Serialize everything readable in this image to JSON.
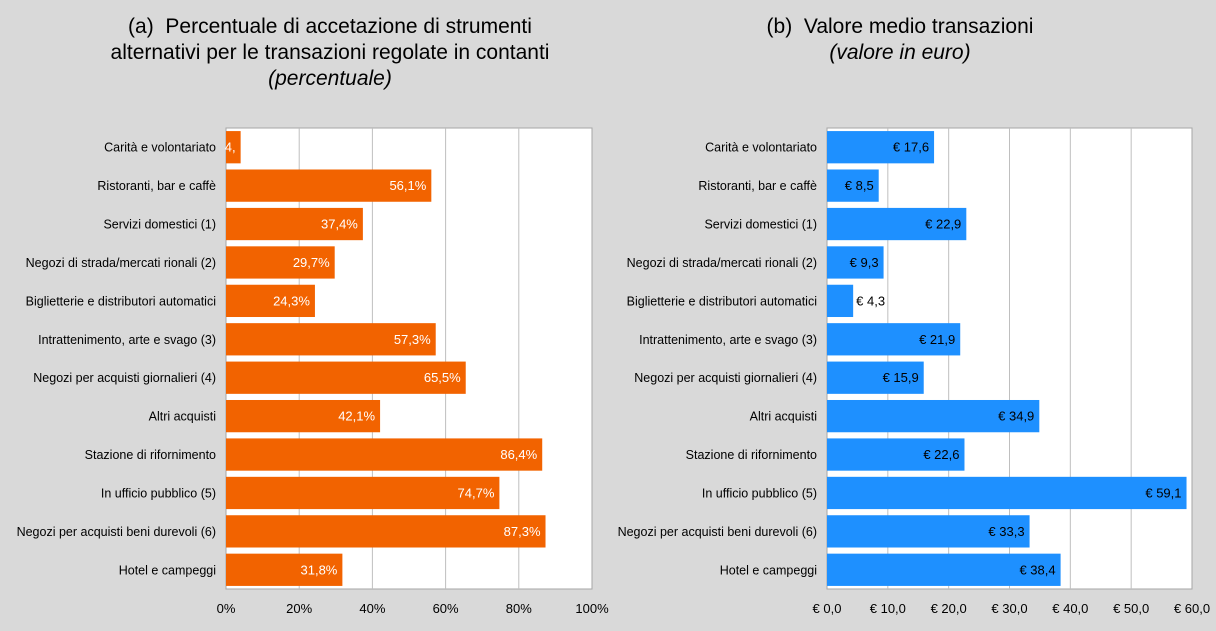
{
  "chart_data": [
    {
      "type": "bar",
      "orientation": "horizontal",
      "title_prefix": "(a)",
      "title_lines": [
        "Percentuale di accetazione di strumenti",
        "alternativi per le transazioni regolate in contanti"
      ],
      "subtitle": "(percentuale)",
      "categories": [
        "Carità e volontariato",
        "Ristoranti, bar e caffè",
        "Servizi domestici (1)",
        "Negozi di strada/mercati rionali (2)",
        "Biglietterie e distributori automatici",
        "Intrattenimento, arte e svago (3)",
        "Negozi per acquisti giornalieri (4)",
        "Altri acquisti",
        "Stazione di rifornimento",
        "In ufficio pubblico (5)",
        "Negozi per acquisti beni durevoli (6)",
        "Hotel e campeggi"
      ],
      "values": [
        4.0,
        56.1,
        37.4,
        29.7,
        24.3,
        57.3,
        65.5,
        42.1,
        86.4,
        74.7,
        87.3,
        31.8
      ],
      "value_labels": [
        "4,",
        "56,1%",
        "37,4%",
        "29,7%",
        "24,3%",
        "57,3%",
        "65,5%",
        "42,1%",
        "86,4%",
        "74,7%",
        "87,3%",
        "31,8%"
      ],
      "xlim": [
        0,
        100
      ],
      "xticks": [
        "0%",
        "20%",
        "40%",
        "60%",
        "80%",
        "100%"
      ],
      "color": "#f26300",
      "grid": true
    },
    {
      "type": "bar",
      "orientation": "horizontal",
      "title_prefix": "(b)",
      "title_lines": [
        "Valore medio transazioni"
      ],
      "subtitle": "(valore in euro)",
      "categories": [
        "Carità e volontariato",
        "Ristoranti, bar e caffè",
        "Servizi domestici (1)",
        "Negozi di strada/mercati rionali (2)",
        "Biglietterie e distributori automatici",
        "Intrattenimento, arte e svago (3)",
        "Negozi per acquisti giornalieri (4)",
        "Altri acquisti",
        "Stazione di rifornimento",
        "In ufficio pubblico (5)",
        "Negozi per acquisti beni durevoli (6)",
        "Hotel e campeggi"
      ],
      "values": [
        17.6,
        8.5,
        22.9,
        9.3,
        4.3,
        21.9,
        15.9,
        34.9,
        22.6,
        59.1,
        33.3,
        38.4
      ],
      "value_labels": [
        "€ 17,6",
        "€ 8,5",
        "€ 22,9",
        "€ 9,3",
        "€ 4,3",
        "€ 21,9",
        "€ 15,9",
        "€ 34,9",
        "€ 22,6",
        "€ 59,1",
        "€ 33,3",
        "€ 38,4"
      ],
      "xlim": [
        0,
        60
      ],
      "xticks": [
        "€ 0,0",
        "€ 10,0",
        "€ 20,0",
        "€ 30,0",
        "€ 40,0",
        "€ 50,0",
        "€ 60,0"
      ],
      "color": "#1e90ff",
      "grid": true
    }
  ]
}
